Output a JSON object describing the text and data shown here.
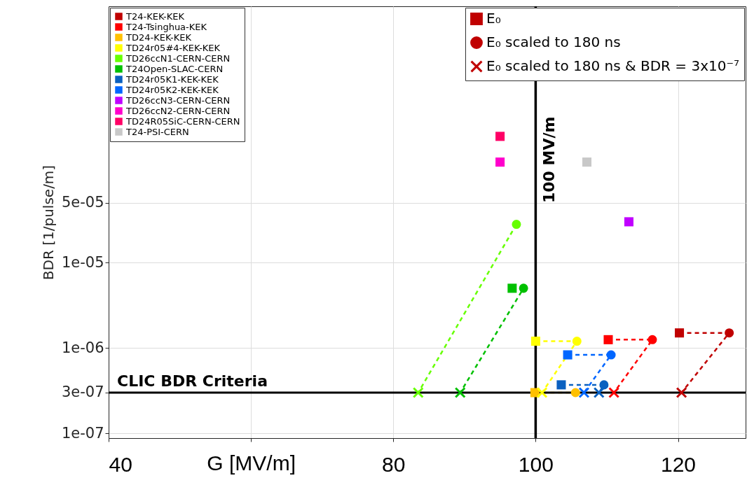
{
  "chart_data": {
    "type": "line",
    "xlabel": "G [MV/m]",
    "ylabel": "BDR [1/pulse/m]",
    "xlim": [
      40,
      129.5
    ],
    "ylim": [
      8.8e-08,
      0.01
    ],
    "log": "y",
    "grid": true,
    "legend": "top left",
    "xticks": [
      40,
      {
        "value": 60,
        "label": null
      },
      80,
      100,
      120
    ],
    "yticks": [
      {
        "value": 1e-07,
        "label": "1e-07"
      },
      {
        "value": 3e-07,
        "label": "3e-07"
      },
      {
        "value": 1e-06,
        "label": "1e-06"
      },
      {
        "value": 1e-05,
        "label": "1e-05"
      },
      {
        "value": 5e-05,
        "label": "5e-05"
      }
    ],
    "line_style": "dashed",
    "series": [
      {
        "name": "E₀",
        "color": "#c00000",
        "marker": "square"
      },
      {
        "name": "E₀ scaled to 180 ns",
        "color": "#c00000",
        "marker": "circle"
      },
      {
        "name": "E₀ scaled to 180 ns & BDR = 3x10⁻⁷",
        "color": "#c00000",
        "marker": "cross"
      },
      {
        "name": "T24-KEK-KEK",
        "color": "#c00000",
        "marker": [
          "square",
          "circle",
          "cross"
        ],
        "x": [
          120.2,
          127.2,
          120.5
        ],
        "values": [
          1.5e-06,
          1.5e-06,
          3e-07
        ]
      },
      {
        "name": "T24-Tsinghua-KEK",
        "color": "#ff0000",
        "marker": [
          "square",
          "circle",
          "cross"
        ],
        "x": [
          110.2,
          116.4,
          111.0
        ],
        "values": [
          1.25e-06,
          1.25e-06,
          3e-07
        ]
      },
      {
        "name": "TD24-KEK-KEK",
        "color": "#ffc000",
        "marker": [
          "square",
          "circle",
          "cross"
        ],
        "x": [
          99.9,
          105.6,
          null
        ],
        "values": [
          3e-07,
          3e-07,
          null
        ]
      },
      {
        "name": "TD24r05#4-KEK-KEK",
        "color": "#ffff00",
        "marker": [
          "square",
          "circle",
          "cross"
        ],
        "x": [
          100.0,
          105.8,
          100.9
        ],
        "values": [
          1.2e-06,
          1.2e-06,
          3e-07
        ]
      },
      {
        "name": "TD26ccN1-CERN-CERN",
        "color": "#66ff00",
        "marker": [
          "square",
          "circle",
          "cross"
        ],
        "x": [
          null,
          97.3,
          83.5
        ],
        "values": [
          null,
          2.8e-05,
          3e-07
        ]
      },
      {
        "name": "T24Open-SLAC-CERN",
        "color": "#00c000",
        "marker": [
          "square",
          "circle",
          "cross"
        ],
        "x": [
          96.7,
          98.3,
          89.4
        ],
        "values": [
          5e-06,
          5e-06,
          3e-07
        ]
      },
      {
        "name": "TD24r05K1-KEK-KEK",
        "color": "#0a60c0",
        "marker": [
          "square",
          "circle",
          "cross"
        ],
        "x": [
          103.6,
          109.6,
          108.9
        ],
        "values": [
          3.7e-07,
          3.7e-07,
          3e-07
        ]
      },
      {
        "name": "TD24r05K2-KEK-KEK",
        "color": "#0066ff",
        "marker": [
          "square",
          "circle",
          "cross"
        ],
        "x": [
          104.5,
          110.6,
          106.8
        ],
        "values": [
          8.3e-07,
          8.3e-07,
          3e-07
        ]
      },
      {
        "name": "TD26ccN3-CERN-CERN",
        "color": "#c000ff",
        "marker": [
          "square"
        ],
        "x": [
          113.1
        ],
        "values": [
          3e-05
        ]
      },
      {
        "name": "TD26ccN2-CERN-CERN",
        "color": "#ff00cc",
        "marker": [
          "square"
        ],
        "x": [
          95.0
        ],
        "values": [
          0.00015
        ]
      },
      {
        "name": "TD24R05SiC-CERN-CERN",
        "color": "#ff0066",
        "marker": [
          "square"
        ],
        "x": [
          95.0
        ],
        "values": [
          0.0003
        ]
      },
      {
        "name": "T24-PSI-CERN",
        "color": "#c8c8c8",
        "marker": [
          "square"
        ],
        "x": [
          107.2
        ],
        "values": [
          0.00015
        ]
      }
    ],
    "ref_lines": [
      {
        "axis": "x",
        "value": 100,
        "label": "100 MV/m"
      },
      {
        "axis": "y",
        "value": 3e-07,
        "label": "CLIC BDR Criteria"
      }
    ]
  }
}
